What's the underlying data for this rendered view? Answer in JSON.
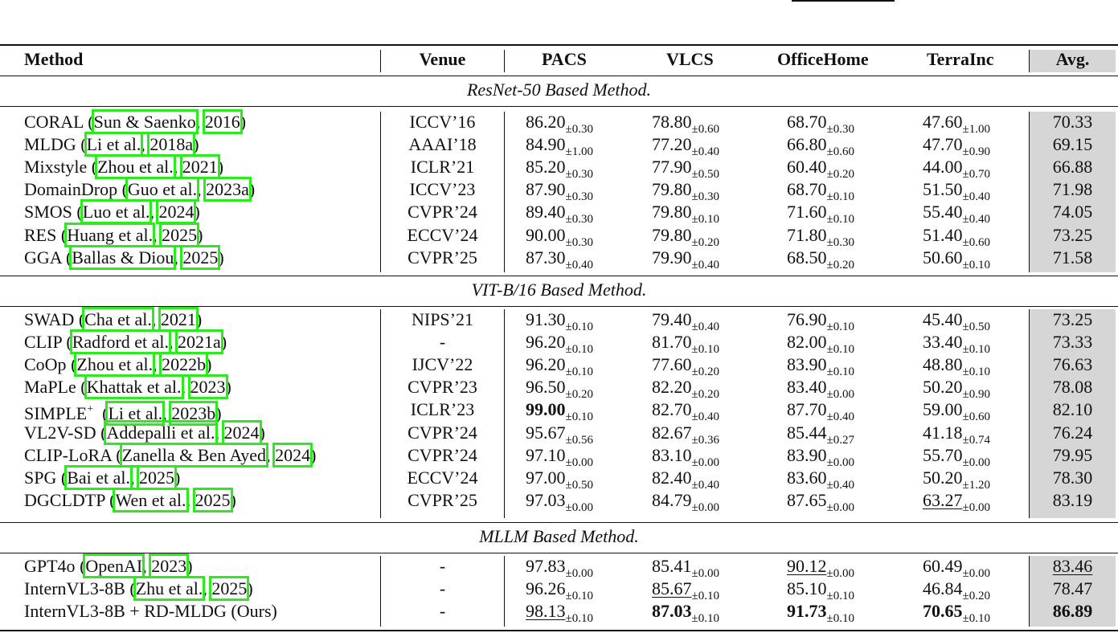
{
  "table": {
    "headers": {
      "method": "Method",
      "venue": "Venue",
      "pacs": "PACS",
      "vlcs": "VLCS",
      "officehome": "OfficeHome",
      "terrainc": "TerraInc",
      "avg": "Avg."
    },
    "sections": [
      {
        "title": "ResNet-50 Based Method.",
        "rows": [
          {
            "method": "CORAL",
            "cite_author": "Sun & Saenko",
            "cite_year": "2016",
            "venue": "ICCV’16",
            "pacs": "86.20",
            "pacs_std": "±0.30",
            "vlcs": "78.80",
            "vlcs_std": "±0.60",
            "officehome": "68.70",
            "officehome_std": "±0.30",
            "terrainc": "47.60",
            "terrainc_std": "±1.00",
            "avg": "70.33"
          },
          {
            "method": "MLDG",
            "cite_author": "Li et al.",
            "cite_year": "2018a",
            "venue": "AAAI’18",
            "pacs": "84.90",
            "pacs_std": "±1.00",
            "vlcs": "77.20",
            "vlcs_std": "±0.40",
            "officehome": "66.80",
            "officehome_std": "±0.60",
            "terrainc": "47.70",
            "terrainc_std": "±0.90",
            "avg": "69.15"
          },
          {
            "method": "Mixstyle",
            "cite_author": "Zhou et al.",
            "cite_year": "2021",
            "venue": "ICLR’21",
            "pacs": "85.20",
            "pacs_std": "±0.30",
            "vlcs": "77.90",
            "vlcs_std": "±0.50",
            "officehome": "60.40",
            "officehome_std": "±0.20",
            "terrainc": "44.00",
            "terrainc_std": "±0.70",
            "avg": "66.88"
          },
          {
            "method": "DomainDrop",
            "cite_author": "Guo et al.",
            "cite_year": "2023a",
            "venue": "ICCV’23",
            "pacs": "87.90",
            "pacs_std": "±0.30",
            "vlcs": "79.80",
            "vlcs_std": "±0.30",
            "officehome": "68.70",
            "officehome_std": "±0.10",
            "terrainc": "51.50",
            "terrainc_std": "±0.40",
            "avg": "71.98"
          },
          {
            "method": "SMOS",
            "cite_author": "Luo et al.",
            "cite_year": "2024",
            "venue": "CVPR’24",
            "pacs": "89.40",
            "pacs_std": "±0.30",
            "vlcs": "79.80",
            "vlcs_std": "±0.10",
            "officehome": "71.60",
            "officehome_std": "±0.10",
            "terrainc": "55.40",
            "terrainc_std": "±0.40",
            "avg": "74.05"
          },
          {
            "method": "RES",
            "cite_author": "Huang et al.",
            "cite_year": "2025",
            "venue": "ECCV’24",
            "pacs": "90.00",
            "pacs_std": "±0.30",
            "vlcs": "79.80",
            "vlcs_std": "±0.20",
            "officehome": "71.80",
            "officehome_std": "±0.30",
            "terrainc": "51.40",
            "terrainc_std": "±0.60",
            "avg": "73.25"
          },
          {
            "method": "GGA",
            "cite_author": "Ballas & Diou",
            "cite_year": "2025",
            "venue": "CVPR’25",
            "pacs": "87.30",
            "pacs_std": "±0.40",
            "vlcs": "79.90",
            "vlcs_std": "±0.40",
            "officehome": "68.50",
            "officehome_std": "±0.20",
            "terrainc": "50.60",
            "terrainc_std": "±0.10",
            "avg": "71.58"
          }
        ]
      },
      {
        "title": "VIT-B/16 Based Method.",
        "rows": [
          {
            "method": "SWAD",
            "cite_author": "Cha et al.",
            "cite_year": "2021",
            "venue": "NIPS’21",
            "pacs": "91.30",
            "pacs_std": "±0.10",
            "vlcs": "79.40",
            "vlcs_std": "±0.40",
            "officehome": "76.90",
            "officehome_std": "±0.10",
            "terrainc": "45.40",
            "terrainc_std": "±0.50",
            "avg": "73.25"
          },
          {
            "method": "CLIP",
            "cite_author": "Radford et al.",
            "cite_year": "2021a",
            "venue": "-",
            "pacs": "96.20",
            "pacs_std": "±0.10",
            "vlcs": "81.70",
            "vlcs_std": "±0.10",
            "officehome": "82.00",
            "officehome_std": "±0.10",
            "terrainc": "33.40",
            "terrainc_std": "±0.10",
            "avg": "73.33"
          },
          {
            "method": "CoOp",
            "cite_author": "Zhou et al.",
            "cite_year": "2022b",
            "venue": "IJCV’22",
            "pacs": "96.20",
            "pacs_std": "±0.10",
            "vlcs": "77.60",
            "vlcs_std": "±0.20",
            "officehome": "83.90",
            "officehome_std": "±0.10",
            "terrainc": "48.80",
            "terrainc_std": "±0.10",
            "avg": "76.63"
          },
          {
            "method": "MaPLe",
            "cite_author": "Khattak et al.",
            "cite_year": "2023",
            "venue": "CVPR’23",
            "pacs": "96.50",
            "pacs_std": "±0.20",
            "vlcs": "82.20",
            "vlcs_std": "±0.20",
            "officehome": "83.40",
            "officehome_std": "±0.00",
            "terrainc": "50.20",
            "terrainc_std": "±0.90",
            "avg": "78.08"
          },
          {
            "method": "SIMPLE",
            "method_sup": "+",
            "cite_author": "Li et al.",
            "cite_year": "2023b",
            "venue": "ICLR’23",
            "pacs": "99.00",
            "pacs_std": "±0.10",
            "vlcs": "82.70",
            "vlcs_std": "±0.40",
            "officehome": "87.70",
            "officehome_std": "±0.40",
            "terrainc": "59.00",
            "terrainc_std": "±0.60",
            "avg": "82.10"
          },
          {
            "method": "VL2V-SD",
            "cite_author": "Addepalli et al.",
            "cite_year": "2024",
            "venue": "CVPR’24",
            "pacs": "95.67",
            "pacs_std": "±0.56",
            "vlcs": "82.67",
            "vlcs_std": "±0.36",
            "officehome": "85.44",
            "officehome_std": "±0.27",
            "terrainc": "41.18",
            "terrainc_std": "±0.74",
            "avg": "76.24"
          },
          {
            "method": "CLIP-LoRA",
            "cite_author": "Zanella & Ben Ayed",
            "cite_year": "2024",
            "venue": "CVPR’24",
            "pacs": "97.10",
            "pacs_std": "±0.00",
            "vlcs": "83.10",
            "vlcs_std": "±0.00",
            "officehome": "83.90",
            "officehome_std": "±0.00",
            "terrainc": "55.70",
            "terrainc_std": "±0.00",
            "avg": "79.95"
          },
          {
            "method": "SPG",
            "cite_author": "Bai et al.",
            "cite_year": "2025",
            "venue": "ECCV’24",
            "pacs": "97.00",
            "pacs_std": "±0.50",
            "vlcs": "82.40",
            "vlcs_std": "±0.40",
            "officehome": "83.60",
            "officehome_std": "±0.40",
            "terrainc": "50.20",
            "terrainc_std": "±1.20",
            "avg": "78.30"
          },
          {
            "method": "DGCLDTP",
            "cite_author": "Wen et al.",
            "cite_year": "2025",
            "venue": "CVPR’25",
            "pacs": "97.03",
            "pacs_std": "±0.00",
            "vlcs": "84.79",
            "vlcs_std": "±0.00",
            "officehome": "87.65",
            "officehome_std": "±0.00",
            "terrainc": "63.27",
            "terrainc_std": "±0.00",
            "avg": "83.19"
          }
        ]
      },
      {
        "title": "MLLM Based Method.",
        "rows": [
          {
            "method": "GPT4o",
            "cite_author": "OpenAI",
            "cite_year": "2023",
            "venue": "-",
            "pacs": "97.83",
            "pacs_std": "±0.00",
            "vlcs": "85.41",
            "vlcs_std": "±0.00",
            "officehome": "90.12",
            "officehome_std": "±0.00",
            "terrainc": "60.49",
            "terrainc_std": "±0.00",
            "avg": "83.46"
          },
          {
            "method": "InternVL3-8B",
            "cite_author": "Zhu et al.",
            "cite_year": "2025",
            "venue": "-",
            "pacs": "96.26",
            "pacs_std": "±0.10",
            "vlcs": "85.67",
            "vlcs_std": "±0.10",
            "officehome": "85.10",
            "officehome_std": "±0.10",
            "terrainc": "46.84",
            "terrainc_std": "±0.20",
            "avg": "78.47"
          },
          {
            "method": "InternVL3-8B + RD-MLDG (Ours)",
            "venue": "-",
            "pacs": "98.13",
            "pacs_std": "±0.10",
            "vlcs": "87.03",
            "vlcs_std": "±0.10",
            "officehome": "91.73",
            "officehome_std": "±0.10",
            "terrainc": "70.65",
            "terrainc_std": "±0.10",
            "avg": "86.89"
          }
        ]
      }
    ]
  },
  "colors": {
    "avg_column_bg": "#d6d6d6",
    "citation_box": "#2bea1e",
    "rule": "#111111"
  }
}
